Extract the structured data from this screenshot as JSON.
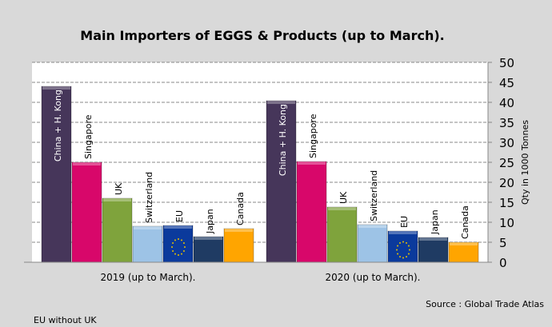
{
  "chart_data": {
    "type": "bar",
    "title": "Main Importers of EGGS & Products (up to March).",
    "ylabel": "Qty in 1000 Tonnes",
    "ylim": [
      0,
      50
    ],
    "yticks": [
      0,
      5,
      10,
      15,
      20,
      25,
      30,
      35,
      40,
      45,
      50
    ],
    "grid": true,
    "categories": [
      "2019 (up to March).",
      "2020 (up to March)."
    ],
    "series": [
      {
        "name": "China + H. Kong",
        "color": "#46365a",
        "values": [
          44,
          40.4
        ]
      },
      {
        "name": "Singapore",
        "color": "#d8076a",
        "values": [
          25,
          25.2
        ]
      },
      {
        "name": "UK",
        "color": "#7fa33c",
        "values": [
          16,
          13.8
        ]
      },
      {
        "name": "Switzerland",
        "color": "#9dc3e6",
        "values": [
          9,
          9.4
        ]
      },
      {
        "name": "EU",
        "color": "#0b3a9c",
        "values": [
          9.2,
          7.8
        ]
      },
      {
        "name": "Japan",
        "color": "#1f3b63",
        "values": [
          6.4,
          6.2
        ]
      },
      {
        "name": "Canada",
        "color": "#ffa500",
        "values": [
          8.4,
          5
        ]
      }
    ],
    "source": "Source : Global Trade Atlas",
    "footnote": "EU without UK"
  }
}
